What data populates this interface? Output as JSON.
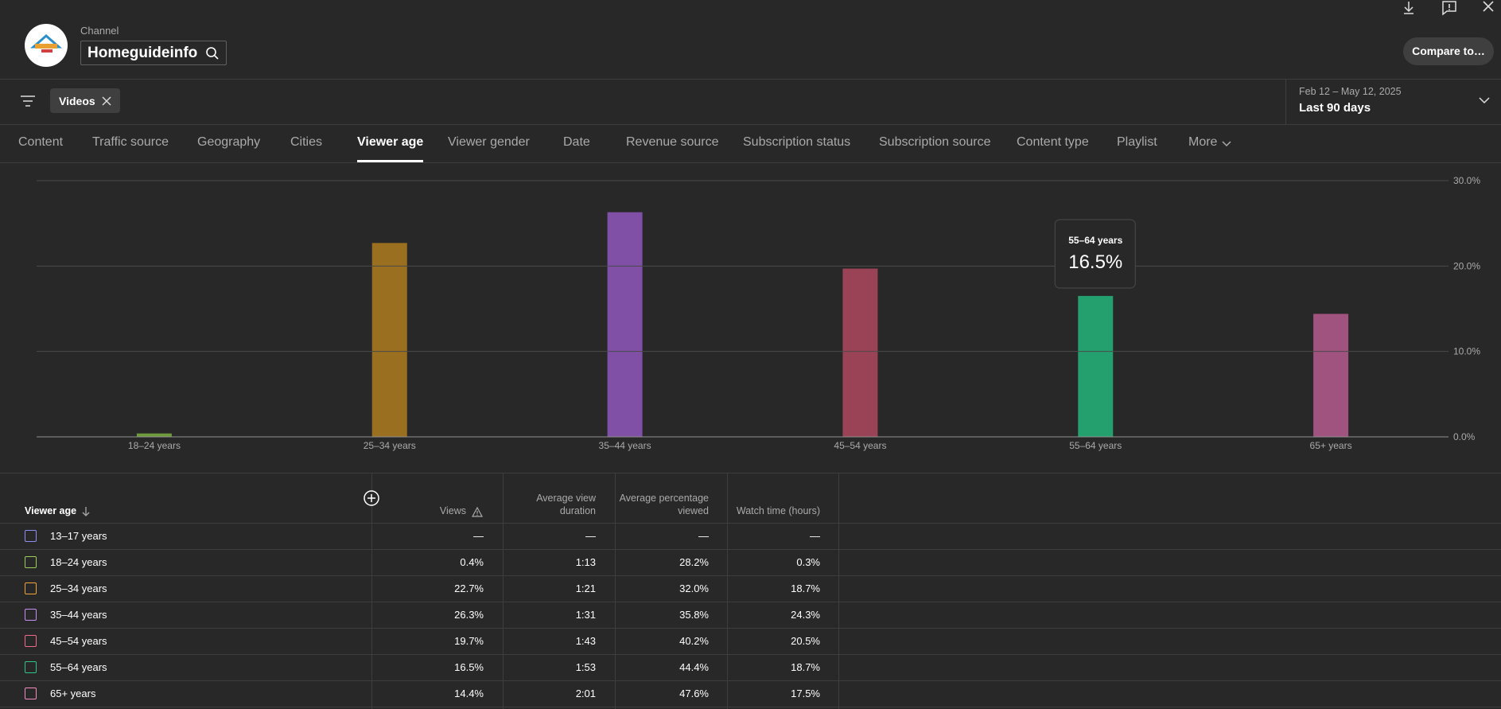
{
  "header": {
    "channel_label": "Channel",
    "channel_name": "Homeguideinfo",
    "compare_button": "Compare to…"
  },
  "filter": {
    "chip": "Videos"
  },
  "date_range": {
    "range": "Feb 12 – May 12, 2025",
    "preset": "Last 90 days"
  },
  "tabs": [
    "Content",
    "Traffic source",
    "Geography",
    "Cities",
    "Viewer age",
    "Viewer gender",
    "Date",
    "Revenue source",
    "Subscription status",
    "Subscription source",
    "Content type",
    "Playlist",
    "More"
  ],
  "active_tab": "Viewer age",
  "chart_data": {
    "type": "bar",
    "categories": [
      "18–24 years",
      "25–34 years",
      "35–44 years",
      "45–54 years",
      "55–64 years",
      "65+ years"
    ],
    "values": [
      0.4,
      22.7,
      26.3,
      19.7,
      16.5,
      14.4
    ],
    "colors": [
      "#6f9a3c",
      "#9a6f1f",
      "#7f50a6",
      "#9a4356",
      "#24a06f",
      "#a1537f"
    ],
    "ylim": [
      0,
      30
    ],
    "yticks": [
      {
        "value": 0,
        "label": "0.0%"
      },
      {
        "value": 10,
        "label": "10.0%"
      },
      {
        "value": 20,
        "label": "20.0%"
      },
      {
        "value": 30,
        "label": "30.0%"
      }
    ],
    "grid": true,
    "tooltip": {
      "category": "55–64 years",
      "value_label": "16.5%"
    }
  },
  "table": {
    "columns": [
      "Viewer age",
      "Views",
      "Average view duration",
      "Average percentage viewed",
      "Watch time (hours)"
    ],
    "row_colors": [
      "#8e8ef2",
      "#9ccc5b",
      "#f2a43c",
      "#c690f2",
      "#f26b8b",
      "#30c48b",
      "#f58cc2"
    ],
    "rows": [
      [
        "13–17 years",
        "—",
        "—",
        "—",
        "—"
      ],
      [
        "18–24 years",
        "0.4%",
        "1:13",
        "28.2%",
        "0.3%"
      ],
      [
        "25–34 years",
        "22.7%",
        "1:21",
        "32.0%",
        "18.7%"
      ],
      [
        "35–44 years",
        "26.3%",
        "1:31",
        "35.8%",
        "24.3%"
      ],
      [
        "45–54 years",
        "19.7%",
        "1:43",
        "40.2%",
        "20.5%"
      ],
      [
        "55–64 years",
        "16.5%",
        "1:53",
        "44.4%",
        "18.7%"
      ],
      [
        "65+ years",
        "14.4%",
        "2:01",
        "47.6%",
        "17.5%"
      ]
    ]
  }
}
